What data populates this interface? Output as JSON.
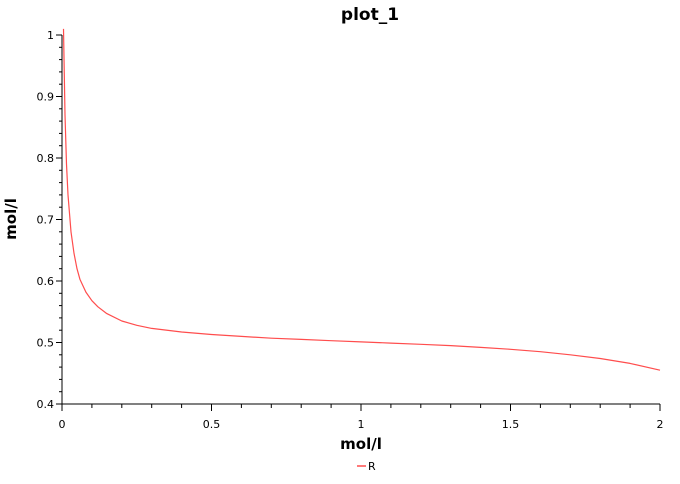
{
  "chart_data": {
    "type": "line",
    "title": "plot_1",
    "xlabel": "mol/l",
    "ylabel": "mol/l",
    "xlim": [
      0,
      2
    ],
    "ylim": [
      0.4,
      1
    ],
    "x_ticks": [
      "0",
      "0.5",
      "1",
      "1.5",
      "2"
    ],
    "y_ticks": [
      "0.4",
      "0.5",
      "0.6",
      "0.7",
      "0.8",
      "0.9",
      "1"
    ],
    "x_tick_values": [
      0,
      0.5,
      1,
      1.5,
      2
    ],
    "y_tick_values": [
      0.4,
      0.5,
      0.6,
      0.7,
      0.8,
      0.9,
      1.0
    ],
    "grid": false,
    "legend_position": "bottom-center",
    "series": [
      {
        "name": "R",
        "color": "#ff4d4d",
        "x": [
          0.005,
          0.01,
          0.015,
          0.02,
          0.03,
          0.04,
          0.05,
          0.06,
          0.08,
          0.1,
          0.12,
          0.15,
          0.2,
          0.25,
          0.3,
          0.4,
          0.5,
          0.6,
          0.7,
          0.8,
          0.9,
          1.0,
          1.1,
          1.2,
          1.3,
          1.4,
          1.5,
          1.6,
          1.7,
          1.8,
          1.9,
          2.0
        ],
        "values": [
          1.01,
          0.87,
          0.79,
          0.74,
          0.68,
          0.645,
          0.62,
          0.603,
          0.582,
          0.568,
          0.558,
          0.547,
          0.535,
          0.528,
          0.523,
          0.517,
          0.513,
          0.51,
          0.507,
          0.505,
          0.503,
          0.501,
          0.499,
          0.497,
          0.495,
          0.492,
          0.489,
          0.485,
          0.48,
          0.474,
          0.466,
          0.455
        ]
      }
    ]
  }
}
